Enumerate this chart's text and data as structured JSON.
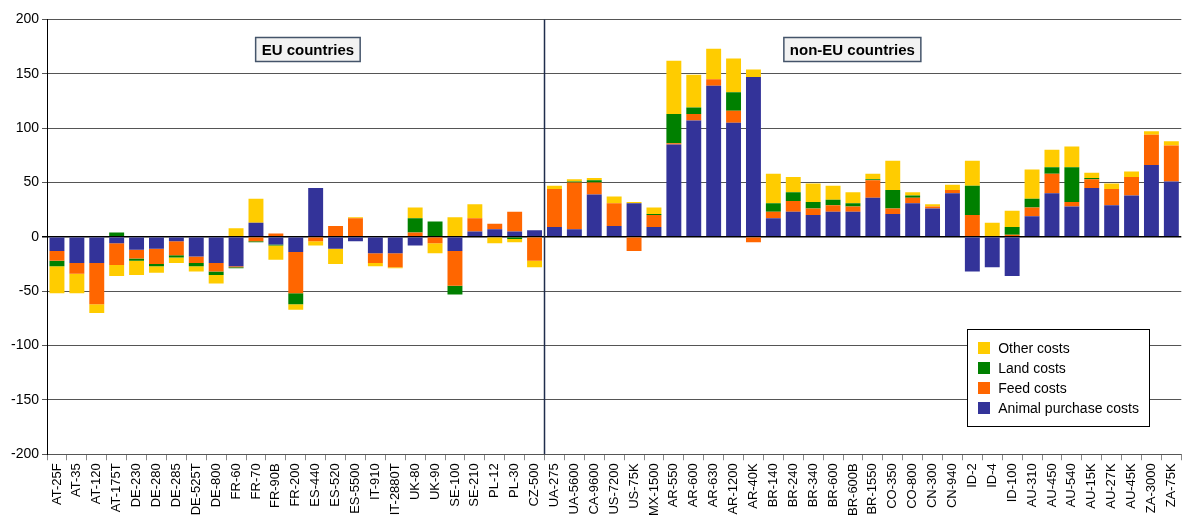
{
  "chart_data": {
    "type": "bar",
    "stacked": true,
    "categories": [
      "AT-25F",
      "AT-35",
      "AT-120",
      "AT-175T",
      "DE-230",
      "DE-280",
      "DE-285",
      "DE-525T",
      "DE-800",
      "FR-60",
      "FR-70",
      "FR-90B",
      "FR-200",
      "ES-440",
      "ES-520",
      "ES-5500",
      "IT-910",
      "IT-2880T",
      "UK-80",
      "UK-90",
      "SE-100",
      "SE-210",
      "PL-12",
      "PL-30",
      "CZ-500",
      "UA-275",
      "UA-5600",
      "CA-9600",
      "US-7200",
      "US-75K",
      "MX-1500",
      "AR-550",
      "AR-600",
      "AR-630",
      "AR-1200",
      "AR-40K",
      "BR-140",
      "BR-240",
      "BR-340",
      "BR-600",
      "BR-600B",
      "BR-1550",
      "CO-350",
      "CO-800",
      "CN-300",
      "CN-940",
      "ID-2",
      "ID-4",
      "ID-100",
      "AU-310",
      "AU-450",
      "AU-540",
      "AU-15K",
      "AU-27K",
      "AU-45K",
      "ZA-3000",
      "ZA-75K"
    ],
    "series": [
      {
        "name": "Animal purchase costs",
        "color": "#333399",
        "values": [
          -13,
          -24,
          -24,
          -6,
          -12,
          -11,
          -4,
          -18,
          -24,
          -27,
          13,
          -7,
          -14,
          45,
          -11,
          -4,
          -15,
          -15,
          -8,
          0,
          -13,
          5,
          7,
          5,
          6,
          9,
          7,
          39,
          10,
          31,
          9,
          85,
          107,
          139,
          105,
          147,
          17,
          23,
          20,
          23,
          23,
          36,
          21,
          31,
          26,
          40,
          -32,
          -28,
          -36,
          19,
          40,
          28,
          45,
          29,
          38,
          66,
          51
        ]
      },
      {
        "name": "Feed costs",
        "color": "#ff6600",
        "values": [
          -9,
          -10,
          -38,
          -20,
          -8,
          -14,
          -13,
          -6,
          -8,
          -1,
          -4,
          3,
          -38,
          -4,
          10,
          17,
          -9,
          -13,
          4,
          -6,
          -32,
          12,
          5,
          18,
          -22,
          35,
          43,
          11,
          21,
          -13,
          11,
          1,
          6,
          6,
          11,
          -5,
          6,
          10,
          6,
          6,
          5,
          16,
          5,
          5,
          2,
          3,
          20,
          0,
          2,
          8,
          18,
          4,
          8,
          15,
          17,
          28,
          33
        ]
      },
      {
        "name": "Land costs",
        "color": "#008000",
        "values": [
          -5,
          0,
          0,
          4,
          -2,
          -2,
          -2,
          -3,
          -3,
          -1,
          -1,
          -1,
          -10,
          0,
          0,
          0,
          0,
          0,
          13,
          14,
          -8,
          0,
          0,
          -2,
          0,
          0,
          1,
          2,
          0,
          0,
          1,
          27,
          6,
          0,
          17,
          0,
          8,
          8,
          6,
          5,
          3,
          1,
          17,
          2,
          0,
          0,
          27,
          0,
          7,
          8,
          6,
          32,
          1,
          0,
          0,
          0,
          0
        ]
      },
      {
        "name": "Other costs",
        "color": "#ffcc00",
        "values": [
          -25,
          -18,
          -8,
          -10,
          -13,
          -6,
          -5,
          -5,
          -8,
          8,
          22,
          -13,
          -5,
          -4,
          -14,
          1,
          -3,
          -1,
          10,
          -9,
          18,
          13,
          -6,
          -3,
          -6,
          3,
          2,
          2,
          6,
          1,
          6,
          49,
          30,
          28,
          31,
          7,
          27,
          14,
          17,
          13,
          10,
          5,
          27,
          3,
          2,
          5,
          23,
          13,
          15,
          27,
          16,
          19,
          5,
          5,
          5,
          3,
          4
        ]
      }
    ],
    "ylim": [
      -200,
      200
    ],
    "yticks": [
      -200,
      -150,
      -100,
      -50,
      0,
      50,
      100,
      150,
      200
    ],
    "grid": "y",
    "legend": "bottom right",
    "annotations": [
      "EU countries",
      "non-EU countries"
    ],
    "ref_lines": [
      {
        "axis": "x",
        "value": "CZ-500",
        "color": "#1f2d4d"
      }
    ]
  }
}
